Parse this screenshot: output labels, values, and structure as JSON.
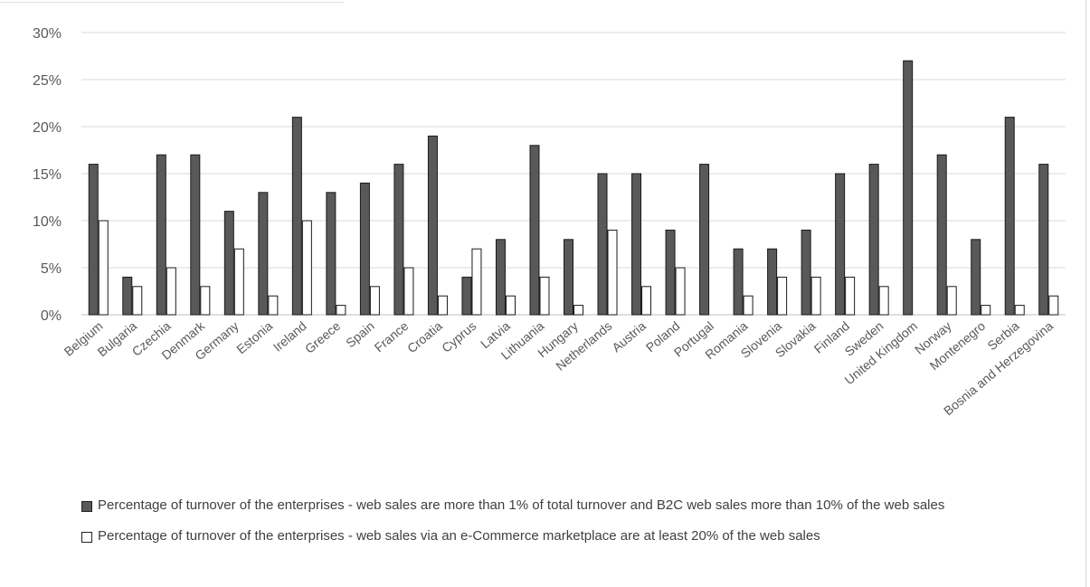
{
  "chart_data": {
    "type": "bar",
    "title": "",
    "xlabel": "",
    "ylabel": "",
    "ylim": [
      0,
      30
    ],
    "yticks": [
      "0%",
      "5%",
      "10%",
      "15%",
      "20%",
      "25%",
      "30%"
    ],
    "ytick_values": [
      0,
      5,
      10,
      15,
      20,
      25,
      30
    ],
    "grid": true,
    "legend_position": "bottom",
    "categories": [
      "Belgium",
      "Bulgaria",
      "Czechia",
      "Denmark",
      "Germany",
      "Estonia",
      "Ireland",
      "Greece",
      "Spain",
      "France",
      "Croatia",
      "Cyprus",
      "Latvia",
      "Lithuania",
      "Hungary",
      "Netherlands",
      "Austria",
      "Poland",
      "Portugal",
      "Romania",
      "Slovenia",
      "Slovakia",
      "Finland",
      "Sweden",
      "United Kingdom",
      "Norway",
      "Montenegro",
      "Serbia",
      "Bosnia and Herzegovina"
    ],
    "series": [
      {
        "name": "Percentage of turnover of the enterprises - web sales are more than 1% of total turnover and B2C web sales more than 10% of the web sales",
        "color": "#595959",
        "values": [
          16,
          4,
          17,
          17,
          11,
          13,
          21,
          13,
          14,
          16,
          19,
          4,
          8,
          18,
          8,
          15,
          15,
          9,
          16,
          7,
          7,
          9,
          15,
          16,
          27,
          17,
          8,
          21,
          16
        ]
      },
      {
        "name": "Percentage of turnover of the enterprises - web sales via an e-Commerce marketplace are at least 20% of the web sales",
        "color": "#ffffff",
        "values": [
          10,
          3,
          5,
          3,
          7,
          2,
          10,
          1,
          3,
          5,
          2,
          7,
          2,
          4,
          1,
          9,
          3,
          5,
          null,
          2,
          4,
          4,
          4,
          3,
          null,
          3,
          1,
          1,
          2
        ]
      }
    ]
  },
  "legend": {
    "item1": "Percentage of turnover of the enterprises - web sales are more than 1% of total turnover and B2C web sales more than 10% of the web sales",
    "item2": "Percentage of turnover of the enterprises - web sales via an e-Commerce marketplace are at least 20% of the web sales"
  },
  "colors": {
    "series1": "#595959",
    "series2": "#ffffff",
    "grid": "#d9d9d9",
    "text": "#595959"
  }
}
